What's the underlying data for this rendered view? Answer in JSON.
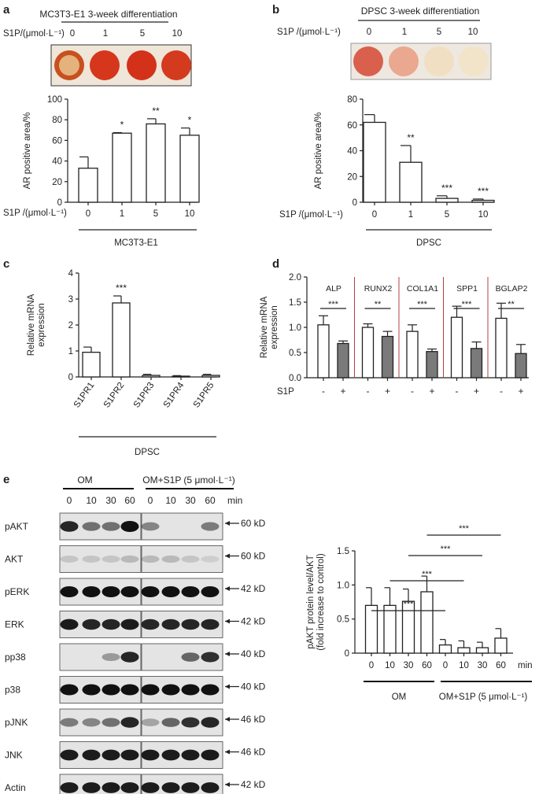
{
  "panels": {
    "a": {
      "letter": "a",
      "header": "MC3T3-E1 3-week differentiation",
      "dose_label": "S1P/(μmol·L⁻¹)",
      "doses": [
        "0",
        "1",
        "5",
        "10"
      ],
      "group_label": "MC3T3-E1"
    },
    "b": {
      "letter": "b",
      "header": "DPSC 3-week differentiation",
      "dose_label": "S1P /(μmol·L⁻¹)",
      "doses": [
        "0",
        "1",
        "5",
        "10"
      ],
      "group_label": "DPSC"
    },
    "c": {
      "letter": "c",
      "group_label": "DPSC"
    },
    "d": {
      "letter": "d",
      "s1p_label": "S1P",
      "minus": "-",
      "plus": "+"
    },
    "e": {
      "letter": "e",
      "om_label": "OM",
      "om_s1p_label": "OM+S1P (5 μmol·L⁻¹)",
      "times": [
        "0",
        "10",
        "30",
        "60"
      ],
      "min_label": "min",
      "blots": [
        {
          "name": "pAKT",
          "kd": "60 kD"
        },
        {
          "name": "AKT",
          "kd": "60 kD"
        },
        {
          "name": "pERK",
          "kd": "42 kD"
        },
        {
          "name": "ERK",
          "kd": "42 kD"
        },
        {
          "name": "pp38",
          "kd": "40 kD"
        },
        {
          "name": "p38",
          "kd": "40 kD"
        },
        {
          "name": "pJNK",
          "kd": "46 kD"
        },
        {
          "name": "JNK",
          "kd": "46 kD"
        },
        {
          "name": "Actin",
          "kd": "42 kD"
        }
      ]
    }
  },
  "colors": {
    "open_bar": "#ffffff",
    "grey_bar": "#7a7a7a",
    "divider": "#b04040"
  },
  "chart_data": [
    {
      "id": "a",
      "type": "bar",
      "ylabel": "AR positive area/%",
      "xlabel": "S1P /(μmol·L⁻¹)",
      "categories": [
        "0",
        "1",
        "5",
        "10"
      ],
      "values": [
        33,
        67,
        76,
        65
      ],
      "errors": [
        11,
        0.5,
        5,
        7
      ],
      "significance": [
        "",
        "*",
        "**",
        "*"
      ],
      "ylim": [
        0,
        100
      ],
      "yticks": [
        0,
        20,
        40,
        60,
        80,
        100
      ]
    },
    {
      "id": "b",
      "type": "bar",
      "ylabel": "AR positive area/%",
      "xlabel": "S1P /(μmol·L⁻¹)",
      "categories": [
        "0",
        "1",
        "5",
        "10"
      ],
      "values": [
        62,
        31,
        3,
        1.5
      ],
      "errors": [
        6,
        13,
        2,
        1
      ],
      "significance": [
        "",
        "**",
        "***",
        "***"
      ],
      "ylim": [
        0,
        80
      ],
      "yticks": [
        0,
        20,
        40,
        60,
        80
      ]
    },
    {
      "id": "c",
      "type": "bar",
      "ylabel": "Relative mRNA expression",
      "categories": [
        "S1PR1",
        "S1PR2",
        "S1PR3",
        "S1PR4",
        "S1PR5"
      ],
      "values": [
        0.95,
        2.85,
        0.06,
        0.03,
        0.06
      ],
      "errors": [
        0.2,
        0.27,
        0.04,
        0.02,
        0.04
      ],
      "significance": [
        "",
        "***",
        "",
        "",
        ""
      ],
      "ylim": [
        0,
        4
      ],
      "yticks": [
        0,
        1,
        2,
        3,
        4
      ]
    },
    {
      "id": "d",
      "type": "bar",
      "ylabel": "Relative mRNA expression",
      "categories": [
        "ALP",
        "RUNX2",
        "COL1A1",
        "SPP1",
        "BGLAP2"
      ],
      "series": [
        {
          "values": [
            1.05,
            1.0,
            0.92,
            1.2,
            1.18
          ],
          "errors": [
            0.18,
            0.07,
            0.13,
            0.22,
            0.3
          ]
        },
        {
          "values": [
            0.68,
            0.82,
            0.52,
            0.58,
            0.48
          ],
          "errors": [
            0.05,
            0.1,
            0.05,
            0.13,
            0.18
          ]
        }
      ],
      "significance": [
        "***",
        "**",
        "***",
        "***",
        "**"
      ],
      "ylim": [
        0,
        2.0
      ],
      "yticks": [
        "0.0",
        "0.5",
        "1.0",
        "1.5",
        "2.0"
      ]
    },
    {
      "id": "e",
      "type": "bar",
      "ylabel": "pAKT protein level/AKT",
      "ylabel2": "(fold increase to control)",
      "categories": [
        "0",
        "10",
        "30",
        "60",
        "0",
        "10",
        "30",
        "60"
      ],
      "values": [
        0.7,
        0.7,
        0.76,
        0.9,
        0.12,
        0.08,
        0.08,
        0.22
      ],
      "errors": [
        0.26,
        0.26,
        0.18,
        0.23,
        0.08,
        0.1,
        0.08,
        0.14
      ],
      "ylim": [
        0,
        1.5
      ],
      "yticks": [
        "0",
        "0.5",
        "1.0",
        "1.5"
      ],
      "x_unit": "min",
      "groups": [
        "OM",
        "OM+S1P (5 μmol·L⁻¹)"
      ],
      "significance": [
        "***",
        "***",
        "***",
        "***"
      ]
    }
  ]
}
